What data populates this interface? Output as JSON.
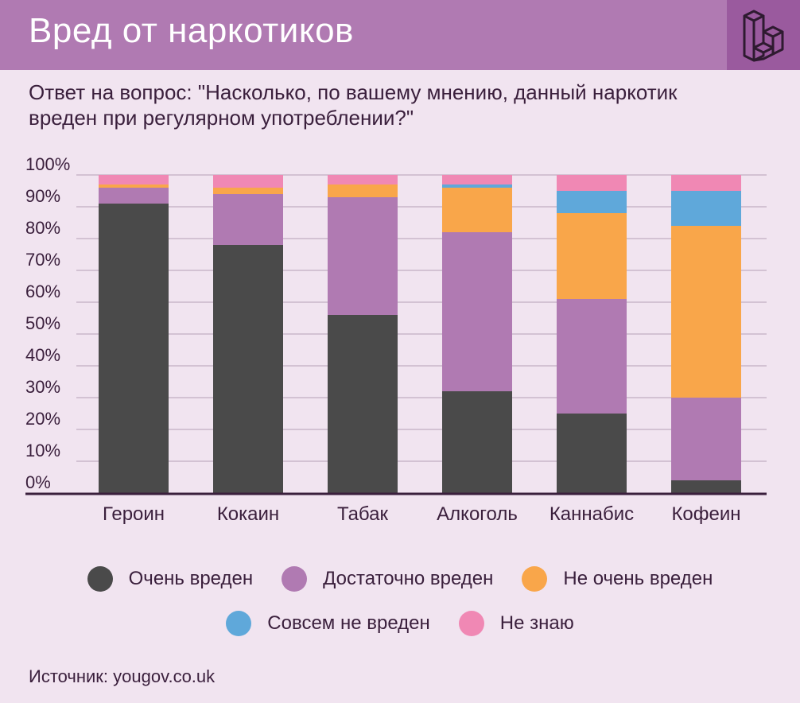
{
  "header": {
    "title": "Вред от наркотиков"
  },
  "subtitle": "Ответ на вопрос: \"Насколько, по вашему мнению, данный наркотик вреден при регулярном употреблении?\"",
  "source": "Источник: yougov.co.uk",
  "colors": {
    "very": "#4a4a4a",
    "fairly": "#b07ab2",
    "not_very": "#f9a64a",
    "not_at_all": "#5fa8da",
    "dont_know": "#f088b4",
    "grid": "#c9b6c9",
    "axis": "#3a1f3c"
  },
  "chart_data": {
    "type": "bar",
    "stacked": true,
    "categories": [
      "Героин",
      "Кокаин",
      "Табак",
      "Алкоголь",
      "Каннабис",
      "Кофеин"
    ],
    "series": [
      {
        "name": "Очень вреден",
        "color_key": "very",
        "values": [
          91,
          78,
          56,
          32,
          25,
          4
        ]
      },
      {
        "name": "Достаточно вреден",
        "color_key": "fairly",
        "values": [
          5,
          16,
          37,
          50,
          36,
          26
        ]
      },
      {
        "name": "Не очень вреден",
        "color_key": "not_very",
        "values": [
          1,
          2,
          4,
          14,
          27,
          54
        ]
      },
      {
        "name": "Совсем не вреден",
        "color_key": "not_at_all",
        "values": [
          0,
          0,
          0,
          1,
          7,
          11
        ]
      },
      {
        "name": "Не знаю",
        "color_key": "dont_know",
        "values": [
          3,
          4,
          3,
          3,
          5,
          5
        ]
      }
    ],
    "ylim": [
      0,
      100
    ],
    "yticks": [
      "0%",
      "10%",
      "20%",
      "30%",
      "40%",
      "50%",
      "60%",
      "70%",
      "80%",
      "90%",
      "100%"
    ],
    "grid": true,
    "legend_placement": "bottom"
  }
}
